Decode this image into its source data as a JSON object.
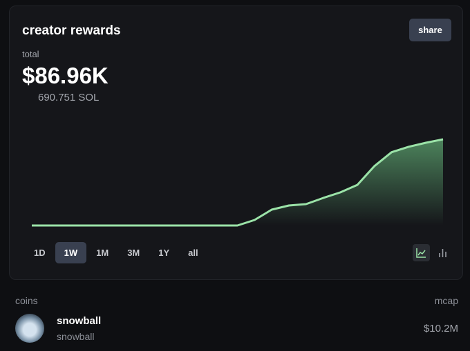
{
  "header": {
    "title": "creator rewards",
    "share": "share"
  },
  "summary": {
    "label": "total",
    "amount": "$86.96K",
    "sol": "690.751 SOL"
  },
  "chart_data": {
    "type": "area",
    "color": "#9be3a8",
    "values": [
      0,
      0,
      0,
      0,
      0,
      0,
      0,
      0,
      0,
      0,
      0,
      0,
      0,
      5.6,
      16,
      20.2,
      21.6,
      27.8,
      33.4,
      41,
      60,
      74,
      79.5,
      83.5,
      87
    ]
  },
  "ranges": {
    "options": [
      "1D",
      "1W",
      "1M",
      "3M",
      "1Y",
      "all"
    ],
    "selected": 1
  },
  "coins": {
    "header": "coins",
    "mcap_header": "mcap",
    "rows": [
      {
        "name": "snowball",
        "ticker": "snowball",
        "mcap": "$10.2M"
      }
    ]
  }
}
